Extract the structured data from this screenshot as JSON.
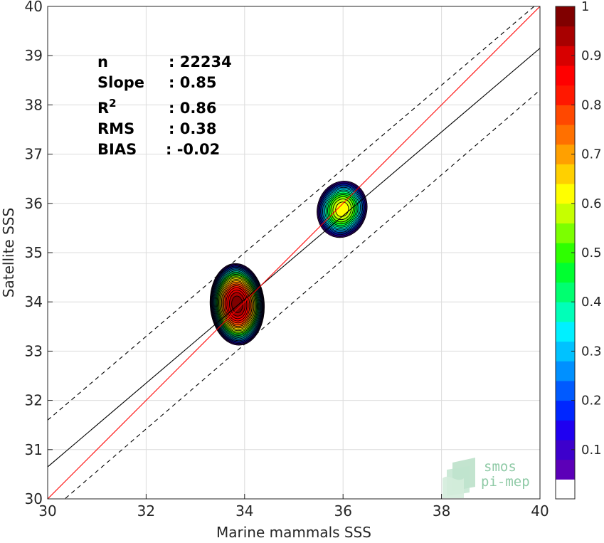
{
  "chart_data": {
    "type": "contour-density-scatter",
    "xlabel": "Marine mammals SSS",
    "ylabel": "Satellite SSS",
    "xlim": [
      30,
      40
    ],
    "ylim": [
      30,
      40
    ],
    "xticks": [
      30,
      32,
      34,
      36,
      38,
      40
    ],
    "yticks": [
      30,
      31,
      32,
      33,
      34,
      35,
      36,
      37,
      38,
      39,
      40
    ],
    "grid": true,
    "stats": [
      {
        "label": "n",
        "sup": "",
        "value": ": 22234"
      },
      {
        "label": "Slope",
        "sup": "",
        "value": ": 0.85"
      },
      {
        "label": "R",
        "sup": "2",
        "value": ": 0.86"
      },
      {
        "label": "RMS",
        "sup": "",
        "value": ": 0.38"
      },
      {
        "label": "BIAS",
        "sup": "",
        "value": ": -0.02"
      }
    ],
    "lines": {
      "identity": {
        "x": [
          30,
          40
        ],
        "y": [
          30,
          40
        ],
        "color": "#ff0000"
      },
      "regression": {
        "x": [
          30,
          40
        ],
        "y": [
          30.65,
          39.15
        ],
        "color": "#000000"
      },
      "upper_dashed": {
        "x": [
          30,
          40
        ],
        "y": [
          31.6,
          40.1
        ],
        "color": "#000000"
      },
      "lower_dashed": {
        "x": [
          30,
          40
        ],
        "y": [
          29.7,
          38.3
        ],
        "color": "#000000"
      }
    },
    "clusters": [
      {
        "cx": 33.85,
        "cy": 33.95,
        "rx": 0.55,
        "ry": 0.83,
        "peak": 1.0
      },
      {
        "cx": 35.98,
        "cy": 35.88,
        "rx": 0.5,
        "ry": 0.58,
        "peak": 0.62
      }
    ],
    "colorbar": {
      "min": 0,
      "max": 1,
      "ticks": [
        0.1,
        0.2,
        0.3,
        0.4,
        0.5,
        0.6,
        0.7,
        0.8,
        0.9,
        1
      ],
      "tick_labels": [
        "0.1",
        "0.2",
        "0.3",
        "0.4",
        "0.5",
        "0.6",
        "0.7",
        "0.8",
        "0.9",
        "1"
      ],
      "colors": [
        "#ffffff",
        "#5c00b8",
        "#3d00cc",
        "#1f00f0",
        "#0026ff",
        "#005aff",
        "#0090ff",
        "#00c2ff",
        "#00f0ff",
        "#00ffb8",
        "#00ff70",
        "#00ff30",
        "#2eff00",
        "#7cff00",
        "#c6ff00",
        "#ffff00",
        "#ffd000",
        "#ffa000",
        "#ff7000",
        "#ff4800",
        "#ff1800",
        "#ff0000",
        "#d80000",
        "#a80000",
        "#800000"
      ]
    }
  },
  "logo": {
    "line1": "smos",
    "line2": "pi-mep"
  }
}
